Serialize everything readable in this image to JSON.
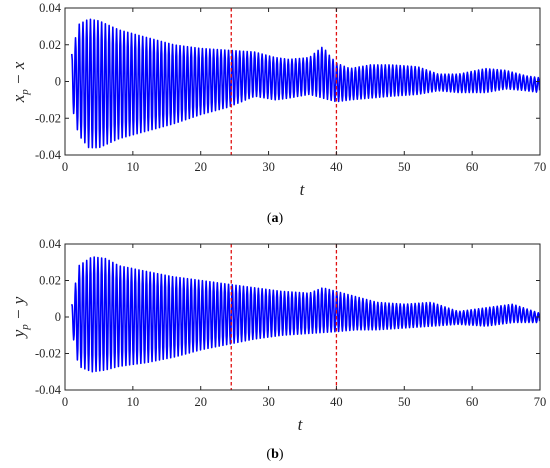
{
  "figure": {
    "captions": [
      {
        "open": "(",
        "letter": "a",
        "close": ")"
      },
      {
        "open": "(",
        "letter": "b",
        "close": ")"
      }
    ]
  },
  "colors": {
    "signal": "#0000ff",
    "vline": "#e01010",
    "axis": "#262626"
  },
  "chart_data": [
    {
      "type": "line",
      "panel": "a",
      "xlabel": "t",
      "ylabel": {
        "main": "x",
        "sub": "p",
        "rest": " − x"
      },
      "xlim": [
        0,
        70
      ],
      "ylim": [
        -0.04,
        0.04
      ],
      "xticks": [
        0,
        10,
        20,
        30,
        40,
        50,
        60,
        70
      ],
      "yticks": [
        -0.04,
        -0.02,
        0,
        0.02,
        0.04
      ],
      "ytick_labels": [
        "-0.04",
        "-0.02",
        "0",
        "0.02",
        "0.04"
      ],
      "grid": false,
      "vlines": [
        24.5,
        40
      ],
      "series": [
        {
          "t_start": 1,
          "oscillation_period": 0.55,
          "envelope_upper": [
            [
              1,
              0.015
            ],
            [
              2,
              0.031
            ],
            [
              3.5,
              0.034
            ],
            [
              5,
              0.033
            ],
            [
              8,
              0.028
            ],
            [
              12,
              0.024
            ],
            [
              16,
              0.02
            ],
            [
              20,
              0.018
            ],
            [
              24,
              0.017
            ],
            [
              28,
              0.016
            ],
            [
              31,
              0.013
            ],
            [
              33,
              0.012
            ],
            [
              36,
              0.013
            ],
            [
              38,
              0.019
            ],
            [
              39,
              0.014
            ],
            [
              40,
              0.01
            ],
            [
              42,
              0.007
            ],
            [
              45,
              0.009
            ],
            [
              48,
              0.009
            ],
            [
              52,
              0.008
            ],
            [
              55,
              0.004
            ],
            [
              58,
              0.004
            ],
            [
              62,
              0.007
            ],
            [
              65,
              0.006
            ],
            [
              68,
              0.003
            ],
            [
              70,
              0.002
            ]
          ],
          "envelope_lower": [
            [
              1,
              -0.013
            ],
            [
              2,
              -0.029
            ],
            [
              3.5,
              -0.036
            ],
            [
              5,
              -0.036
            ],
            [
              8,
              -0.031
            ],
            [
              12,
              -0.027
            ],
            [
              16,
              -0.023
            ],
            [
              20,
              -0.018
            ],
            [
              24,
              -0.014
            ],
            [
              28,
              -0.008
            ],
            [
              31,
              -0.01
            ],
            [
              33,
              -0.009
            ],
            [
              36,
              -0.007
            ],
            [
              38,
              -0.009
            ],
            [
              40,
              -0.011
            ],
            [
              42,
              -0.01
            ],
            [
              45,
              -0.009
            ],
            [
              48,
              -0.008
            ],
            [
              52,
              -0.007
            ],
            [
              55,
              -0.005
            ],
            [
              58,
              -0.006
            ],
            [
              62,
              -0.006
            ],
            [
              65,
              -0.004
            ],
            [
              68,
              -0.005
            ],
            [
              70,
              -0.006
            ]
          ]
        }
      ]
    },
    {
      "type": "line",
      "panel": "b",
      "xlabel": "t",
      "ylabel": {
        "main": "y",
        "sub": "p",
        "rest": " − y"
      },
      "xlim": [
        0,
        70
      ],
      "ylim": [
        -0.04,
        0.04
      ],
      "xticks": [
        0,
        10,
        20,
        30,
        40,
        50,
        60,
        70
      ],
      "yticks": [
        -0.04,
        -0.02,
        0,
        0.02,
        0.04
      ],
      "ytick_labels": [
        "-0.04",
        "-0.02",
        "0",
        "0.02",
        "0.04"
      ],
      "grid": false,
      "vlines": [
        24.5,
        40
      ],
      "series": [
        {
          "t_start": 1,
          "oscillation_period": 0.55,
          "envelope_upper": [
            [
              1,
              0.007
            ],
            [
              2,
              0.028
            ],
            [
              4,
              0.033
            ],
            [
              6,
              0.032
            ],
            [
              8,
              0.028
            ],
            [
              12,
              0.025
            ],
            [
              16,
              0.022
            ],
            [
              20,
              0.02
            ],
            [
              24,
              0.018
            ],
            [
              28,
              0.016
            ],
            [
              32,
              0.014
            ],
            [
              36,
              0.013
            ],
            [
              38,
              0.016
            ],
            [
              40,
              0.014
            ],
            [
              43,
              0.011
            ],
            [
              46,
              0.008
            ],
            [
              50,
              0.007
            ],
            [
              54,
              0.008
            ],
            [
              58,
              0.003
            ],
            [
              62,
              0.005
            ],
            [
              66,
              0.007
            ],
            [
              70,
              0.002
            ]
          ],
          "envelope_lower": [
            [
              1,
              -0.007
            ],
            [
              2,
              -0.027
            ],
            [
              4,
              -0.03
            ],
            [
              6,
              -0.029
            ],
            [
              8,
              -0.027
            ],
            [
              12,
              -0.025
            ],
            [
              16,
              -0.022
            ],
            [
              20,
              -0.018
            ],
            [
              24,
              -0.015
            ],
            [
              28,
              -0.012
            ],
            [
              32,
              -0.01
            ],
            [
              36,
              -0.009
            ],
            [
              40,
              -0.008
            ],
            [
              43,
              -0.007
            ],
            [
              46,
              -0.007
            ],
            [
              50,
              -0.006
            ],
            [
              54,
              -0.005
            ],
            [
              58,
              -0.004
            ],
            [
              62,
              -0.005
            ],
            [
              66,
              -0.003
            ],
            [
              70,
              -0.003
            ]
          ]
        }
      ]
    }
  ]
}
